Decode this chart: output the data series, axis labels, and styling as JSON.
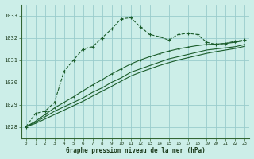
{
  "background_color": "#cceee8",
  "grid_color": "#99cccc",
  "line_color": "#1a5c2a",
  "title": "Graphe pression niveau de la mer (hPa)",
  "xlim": [
    -0.5,
    23.5
  ],
  "ylim": [
    1027.5,
    1033.5
  ],
  "yticks": [
    1028,
    1029,
    1030,
    1031,
    1032,
    1033
  ],
  "xticks": [
    0,
    1,
    2,
    3,
    4,
    5,
    6,
    7,
    8,
    9,
    10,
    11,
    12,
    13,
    14,
    15,
    16,
    17,
    18,
    19,
    20,
    21,
    22,
    23
  ],
  "series1_x": [
    0,
    1,
    2,
    3,
    4,
    5,
    6,
    7,
    8,
    9,
    10,
    11,
    12,
    13,
    14,
    15,
    16,
    17,
    18,
    19,
    20,
    21,
    22,
    23
  ],
  "series1_y": [
    1028.0,
    1028.6,
    1028.7,
    1029.1,
    1030.5,
    1031.0,
    1031.5,
    1031.6,
    1032.0,
    1032.4,
    1032.85,
    1032.9,
    1032.5,
    1032.15,
    1032.05,
    1031.9,
    1032.15,
    1032.2,
    1032.15,
    1031.8,
    1031.7,
    1031.75,
    1031.85,
    1031.9
  ],
  "series2_x": [
    0,
    1,
    2,
    3,
    4,
    5,
    6,
    7,
    8,
    9,
    10,
    11,
    12,
    13,
    14,
    15,
    16,
    17,
    18,
    19,
    20,
    21,
    22,
    23
  ],
  "series2_y": [
    1028.0,
    1028.2,
    1028.45,
    1028.7,
    1028.9,
    1029.1,
    1029.3,
    1029.55,
    1029.75,
    1030.0,
    1030.2,
    1030.45,
    1030.6,
    1030.75,
    1030.9,
    1031.05,
    1031.15,
    1031.25,
    1031.35,
    1031.45,
    1031.5,
    1031.55,
    1031.6,
    1031.7
  ],
  "series3_x": [
    0,
    1,
    2,
    3,
    4,
    5,
    6,
    7,
    8,
    9,
    10,
    11,
    12,
    13,
    14,
    15,
    16,
    17,
    18,
    19,
    20,
    21,
    22,
    23
  ],
  "series3_y": [
    1028.0,
    1028.15,
    1028.35,
    1028.55,
    1028.75,
    1028.95,
    1029.15,
    1029.38,
    1029.6,
    1029.82,
    1030.05,
    1030.28,
    1030.45,
    1030.6,
    1030.75,
    1030.88,
    1031.0,
    1031.1,
    1031.2,
    1031.3,
    1031.38,
    1031.45,
    1031.52,
    1031.62
  ],
  "series4_x": [
    0,
    1,
    2,
    3,
    4,
    5,
    6,
    7,
    8,
    9,
    10,
    11,
    12,
    13,
    14,
    15,
    16,
    17,
    18,
    19,
    20,
    21,
    22,
    23
  ],
  "series4_y": [
    1028.0,
    1028.25,
    1028.55,
    1028.85,
    1029.1,
    1029.35,
    1029.62,
    1029.88,
    1030.12,
    1030.38,
    1030.6,
    1030.82,
    1031.0,
    1031.15,
    1031.28,
    1031.4,
    1031.5,
    1031.58,
    1031.65,
    1031.7,
    1031.72,
    1031.75,
    1031.8,
    1031.88
  ]
}
